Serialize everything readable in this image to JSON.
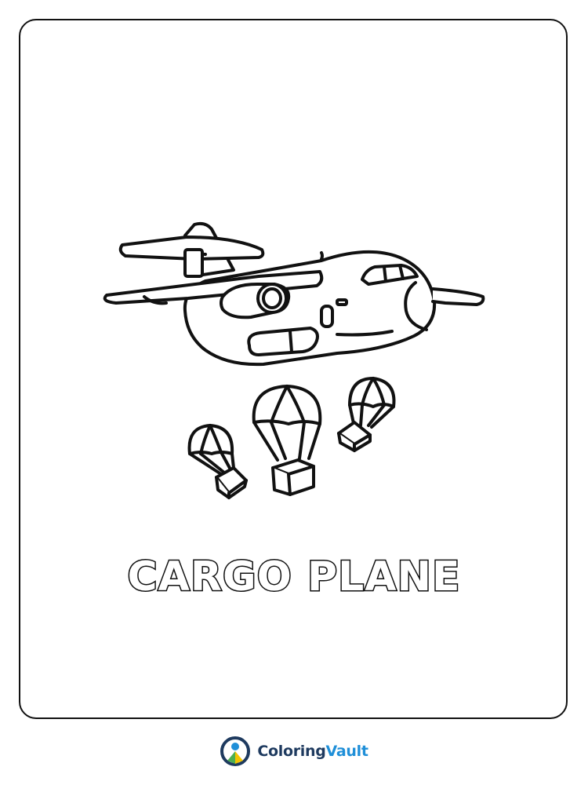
{
  "page": {
    "title": "CARGO PLANE",
    "line_color": "#111111",
    "background": "#ffffff"
  },
  "artwork": {
    "subject": "cargo-plane-dropping-parachute-crates",
    "parachute_count": 3
  },
  "brand": {
    "name_part1": "Coloring",
    "name_part2": "Vault",
    "color_dark": "#1e3a5f",
    "color_accent": "#1f8fd8",
    "color_green": "#4caf50",
    "color_yellow": "#f2c400"
  }
}
